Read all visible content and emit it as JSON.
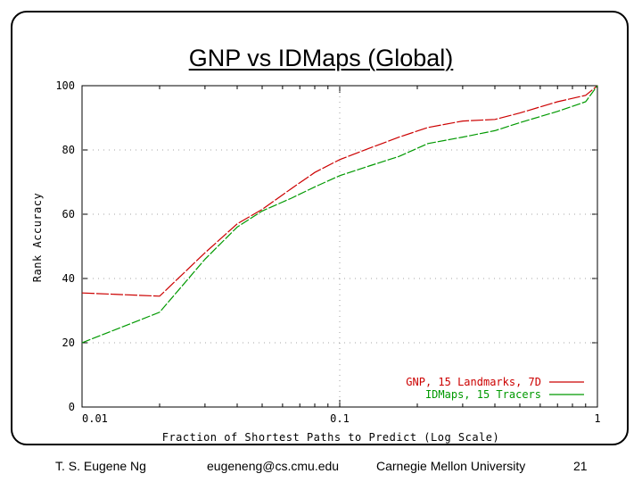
{
  "slide": {
    "title": "GNP vs IDMaps (Global)",
    "footer_author": "T. S. Eugene Ng",
    "footer_email": "eugeneng@cs.cmu.edu",
    "footer_org": "Carnegie Mellon University",
    "page_number": "21"
  },
  "colors": {
    "gnp": "#cc0000",
    "idmaps": "#009900",
    "axis_text": "#000000",
    "grid": "#888888"
  },
  "chart_data": {
    "type": "line",
    "title": "GNP vs IDMaps (Global)",
    "xlabel": "Fraction of Shortest Paths to Predict (Log Scale)",
    "ylabel": "Rank Accuracy",
    "x_scale": "log",
    "xlim": [
      0.01,
      1
    ],
    "ylim": [
      0,
      100
    ],
    "x_ticks": [
      0.01,
      0.1,
      1
    ],
    "x_tick_labels": [
      "0.01",
      "0.1",
      "1"
    ],
    "y_ticks": [
      0,
      20,
      40,
      60,
      80,
      100
    ],
    "y_tick_labels": [
      "0",
      "20",
      "40",
      "60",
      "80",
      "100"
    ],
    "legend_position": "bottom-right",
    "series": [
      {
        "name": "GNP, 15 Landmarks, 7D",
        "color": "#cc0000",
        "x": [
          0.01,
          0.02,
          0.03,
          0.04,
          0.05,
          0.065,
          0.08,
          0.1,
          0.13,
          0.17,
          0.22,
          0.3,
          0.4,
          0.5,
          0.7,
          0.9,
          1.0
        ],
        "y": [
          35.5,
          34.5,
          48,
          57,
          61.5,
          68,
          73,
          77,
          80.5,
          84,
          87,
          89,
          89.5,
          91.5,
          95,
          97,
          100
        ]
      },
      {
        "name": "IDMaps, 15 Tracers",
        "color": "#009900",
        "x": [
          0.01,
          0.02,
          0.03,
          0.04,
          0.05,
          0.065,
          0.08,
          0.1,
          0.13,
          0.17,
          0.22,
          0.3,
          0.4,
          0.5,
          0.7,
          0.9,
          1.0
        ],
        "y": [
          20,
          29.5,
          46,
          56,
          61,
          65,
          68.5,
          72,
          75,
          78,
          82,
          84,
          86,
          88.5,
          92,
          95,
          100
        ]
      }
    ]
  }
}
